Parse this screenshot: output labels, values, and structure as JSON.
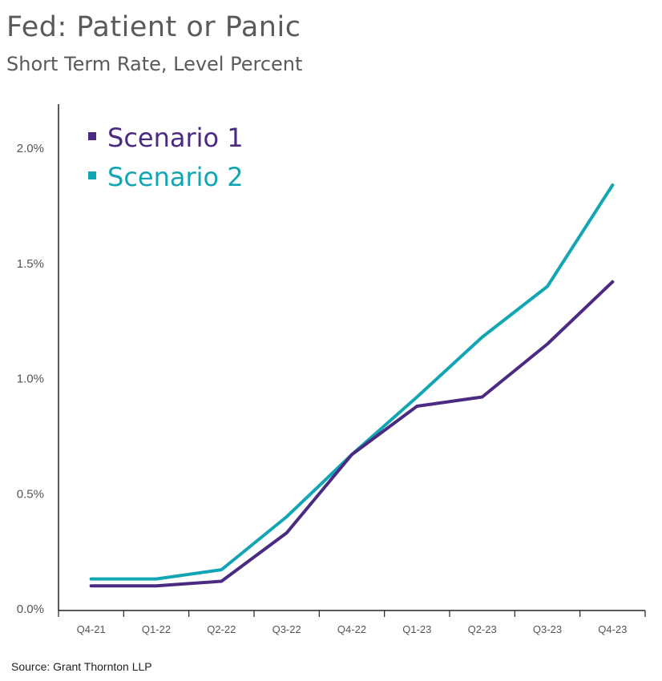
{
  "chart_data": {
    "type": "line",
    "title": "Fed: Patient or Panic",
    "subtitle": "Short Term Rate, Level Percent",
    "source": "Source: Grant Thornton LLP",
    "categories": [
      "Q4-21",
      "Q1-22",
      "Q2-22",
      "Q3-22",
      "Q4-22",
      "Q1-23",
      "Q2-23",
      "Q3-23",
      "Q4-23"
    ],
    "yticks": [
      "0.0%",
      "0.5%",
      "1.0%",
      "1.5%",
      "2.0%"
    ],
    "ylim": [
      0,
      2.2
    ],
    "series": [
      {
        "name": "Scenario 1",
        "color": "#4b2a82",
        "values": [
          0.1,
          0.1,
          0.12,
          0.33,
          0.67,
          0.88,
          0.92,
          1.15,
          1.42
        ]
      },
      {
        "name": "Scenario 2",
        "color": "#12a6b4",
        "values": [
          0.13,
          0.13,
          0.17,
          0.4,
          0.67,
          0.92,
          1.18,
          1.4,
          1.84
        ]
      }
    ],
    "legend_position": "top-left",
    "grid": false
  }
}
